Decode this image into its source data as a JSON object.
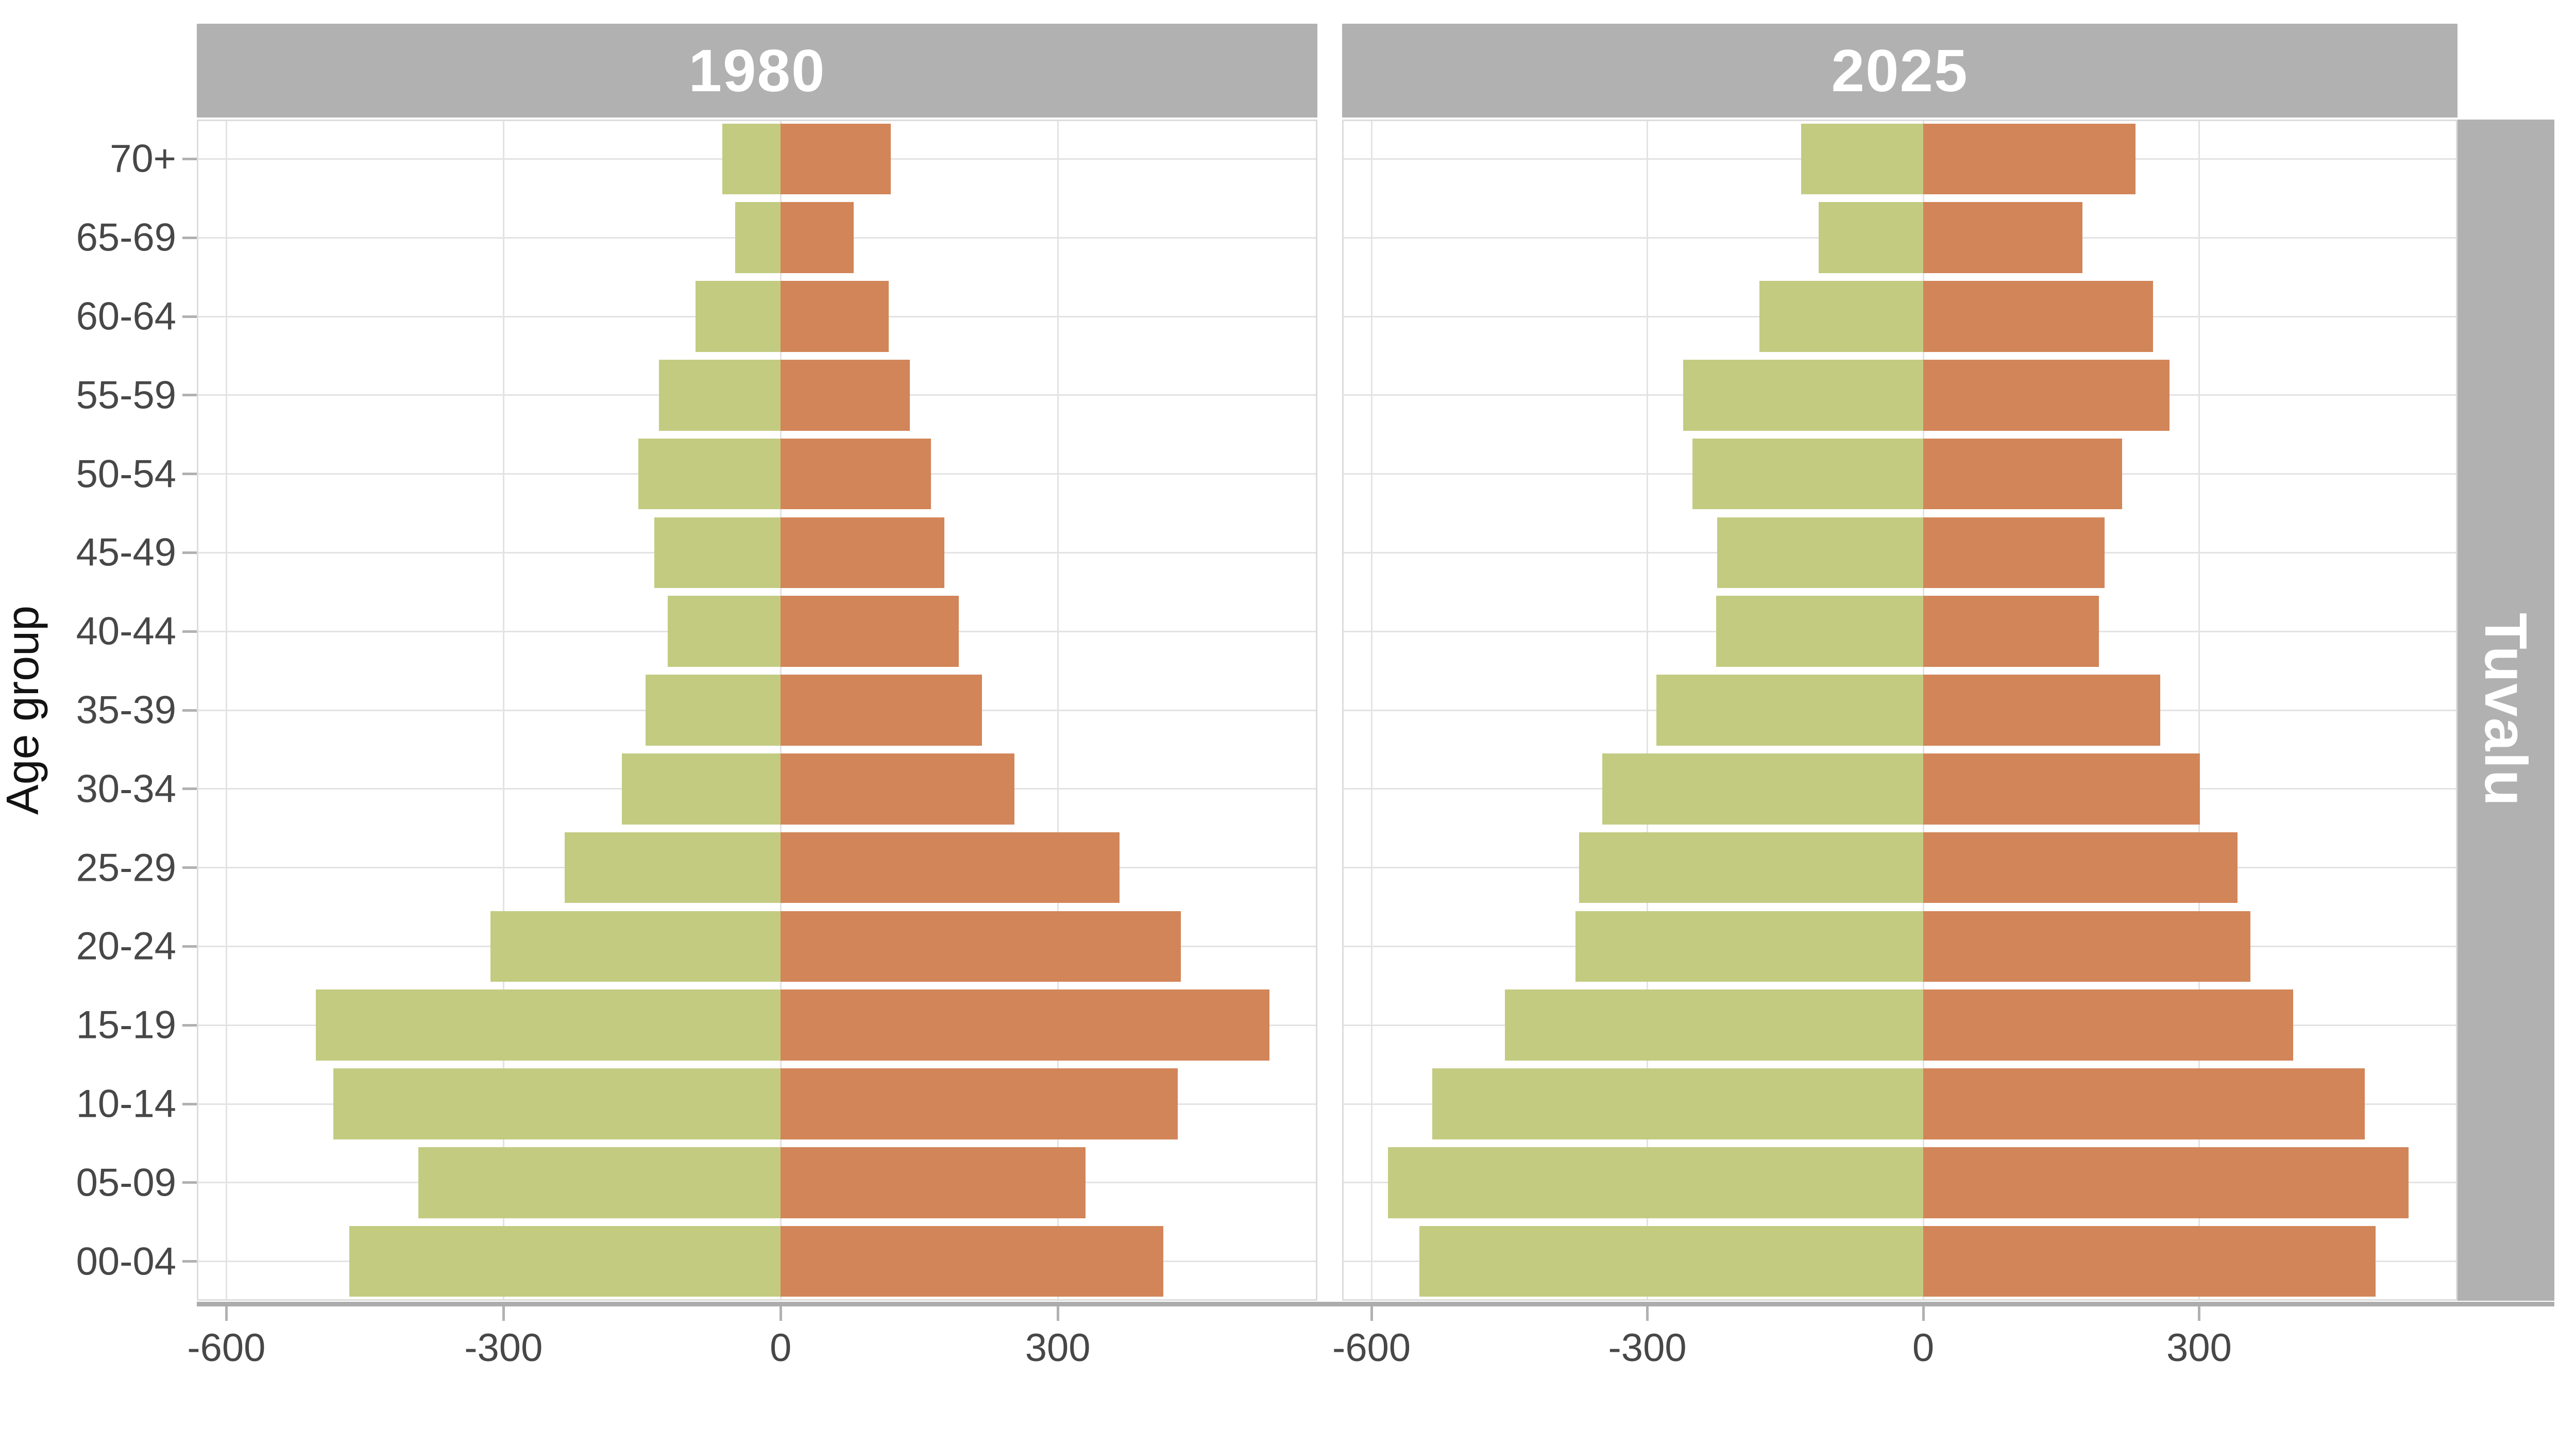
{
  "chart_data": {
    "type": "bar",
    "subtype": "population_pyramid",
    "facet_strip": "Tuvalu",
    "ylabel": "Age group",
    "categories_top_to_bottom": [
      "70+",
      "65-69",
      "60-64",
      "55-59",
      "50-54",
      "45-49",
      "40-44",
      "35-39",
      "30-34",
      "25-29",
      "20-24",
      "15-19",
      "10-14",
      "05-09",
      "00-04"
    ],
    "x_ticks": [
      -600,
      -300,
      0,
      300
    ],
    "x_tick_labels": [
      "-600",
      "-300",
      "0",
      "300"
    ],
    "xlim": [
      -632,
      581
    ],
    "grid": true,
    "legend": "none",
    "facets": [
      {
        "title": "1980",
        "series": [
          {
            "name": "left-green",
            "side": "left",
            "values": [
              63,
              49,
              92,
              132,
              154,
              137,
              122,
              146,
              172,
              234,
              314,
              503,
              484,
              392,
              467
            ]
          },
          {
            "name": "right-orange",
            "side": "right",
            "values": [
              119,
              79,
              117,
              140,
              163,
              177,
              193,
              218,
              253,
              367,
              433,
              529,
              430,
              330,
              414
            ]
          }
        ]
      },
      {
        "title": "2025",
        "series": [
          {
            "name": "left-green",
            "side": "left",
            "values": [
              133,
              114,
              178,
              261,
              251,
              224,
              225,
              290,
              349,
              374,
              378,
              455,
              534,
              582,
              548
            ]
          },
          {
            "name": "right-orange",
            "side": "right",
            "values": [
              231,
              173,
              250,
              268,
              216,
              197,
              191,
              258,
              301,
              342,
              356,
              402,
              480,
              528,
              492
            ]
          }
        ]
      }
    ],
    "colors": {
      "left_bar": "#c3cb81",
      "right_bar": "#d28558",
      "strip_background": "#b1b1b1",
      "strip_text": "#ffffff",
      "gridline": "#e3e3e3",
      "axis_line": "#acacac",
      "tick_mark": "#b1b1b1",
      "tick_label": "#474747",
      "axis_title": "#131313",
      "panel_background": "#ffffff"
    }
  }
}
